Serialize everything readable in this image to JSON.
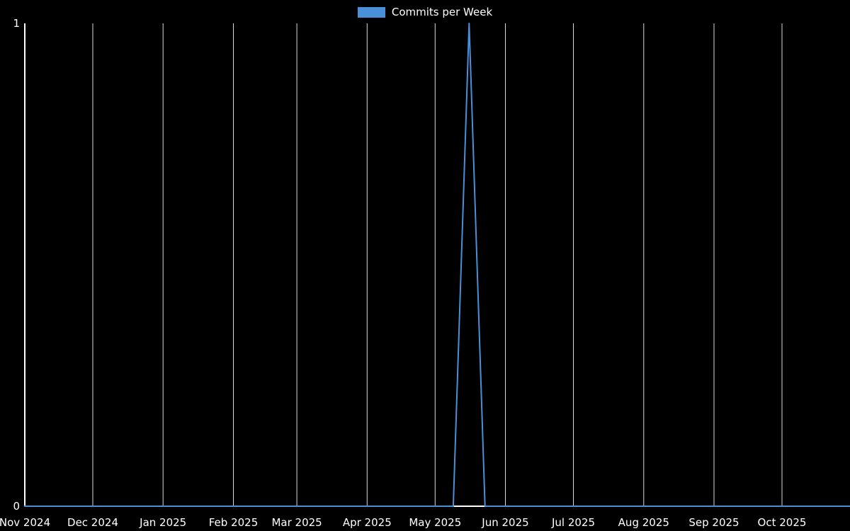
{
  "chart_data": {
    "type": "line",
    "title": "Commits per Week",
    "legend_label": "Commits per Week",
    "legend_position": "top-center",
    "grid": "vertical-only",
    "series": [
      {
        "name": "Commits per Week",
        "start_date": "2024-11-01",
        "interval_days": 7,
        "values": [
          0,
          0,
          0,
          0,
          0,
          0,
          0,
          0,
          0,
          0,
          0,
          0,
          0,
          0,
          0,
          0,
          0,
          0,
          0,
          0,
          0,
          0,
          0,
          0,
          0,
          0,
          0,
          0,
          1,
          0,
          0,
          0,
          0,
          0,
          0,
          0,
          0,
          0,
          0,
          0,
          0,
          0,
          0,
          0,
          0,
          0,
          0,
          0,
          0,
          0,
          0,
          0,
          0
        ]
      }
    ],
    "x_axis": {
      "start": "2024-11-01",
      "end": "2025-10-31",
      "tick_labels": [
        "Nov 2024",
        "Dec 2024",
        "Jan 2025",
        "Feb 2025",
        "Mar 2025",
        "Apr 2025",
        "May 2025",
        "Jun 2025",
        "Jul 2025",
        "Aug 2025",
        "Sep 2025",
        "Oct 2025"
      ],
      "tick_dates": [
        "2024-11-01",
        "2024-12-01",
        "2025-01-01",
        "2025-02-01",
        "2025-03-01",
        "2025-04-01",
        "2025-05-01",
        "2025-06-01",
        "2025-07-01",
        "2025-08-01",
        "2025-09-01",
        "2025-10-01"
      ]
    },
    "y_axis": {
      "min": 0,
      "max": 1,
      "ticks": [
        0,
        1
      ],
      "tick_labels": [
        "0",
        "1"
      ]
    },
    "colors": {
      "line": "#4a90d9",
      "legend_swatch": "#4a90d9",
      "background": "#000000",
      "grid": "#ffffff",
      "axis": "#ffffff",
      "text": "#ffffff"
    }
  }
}
